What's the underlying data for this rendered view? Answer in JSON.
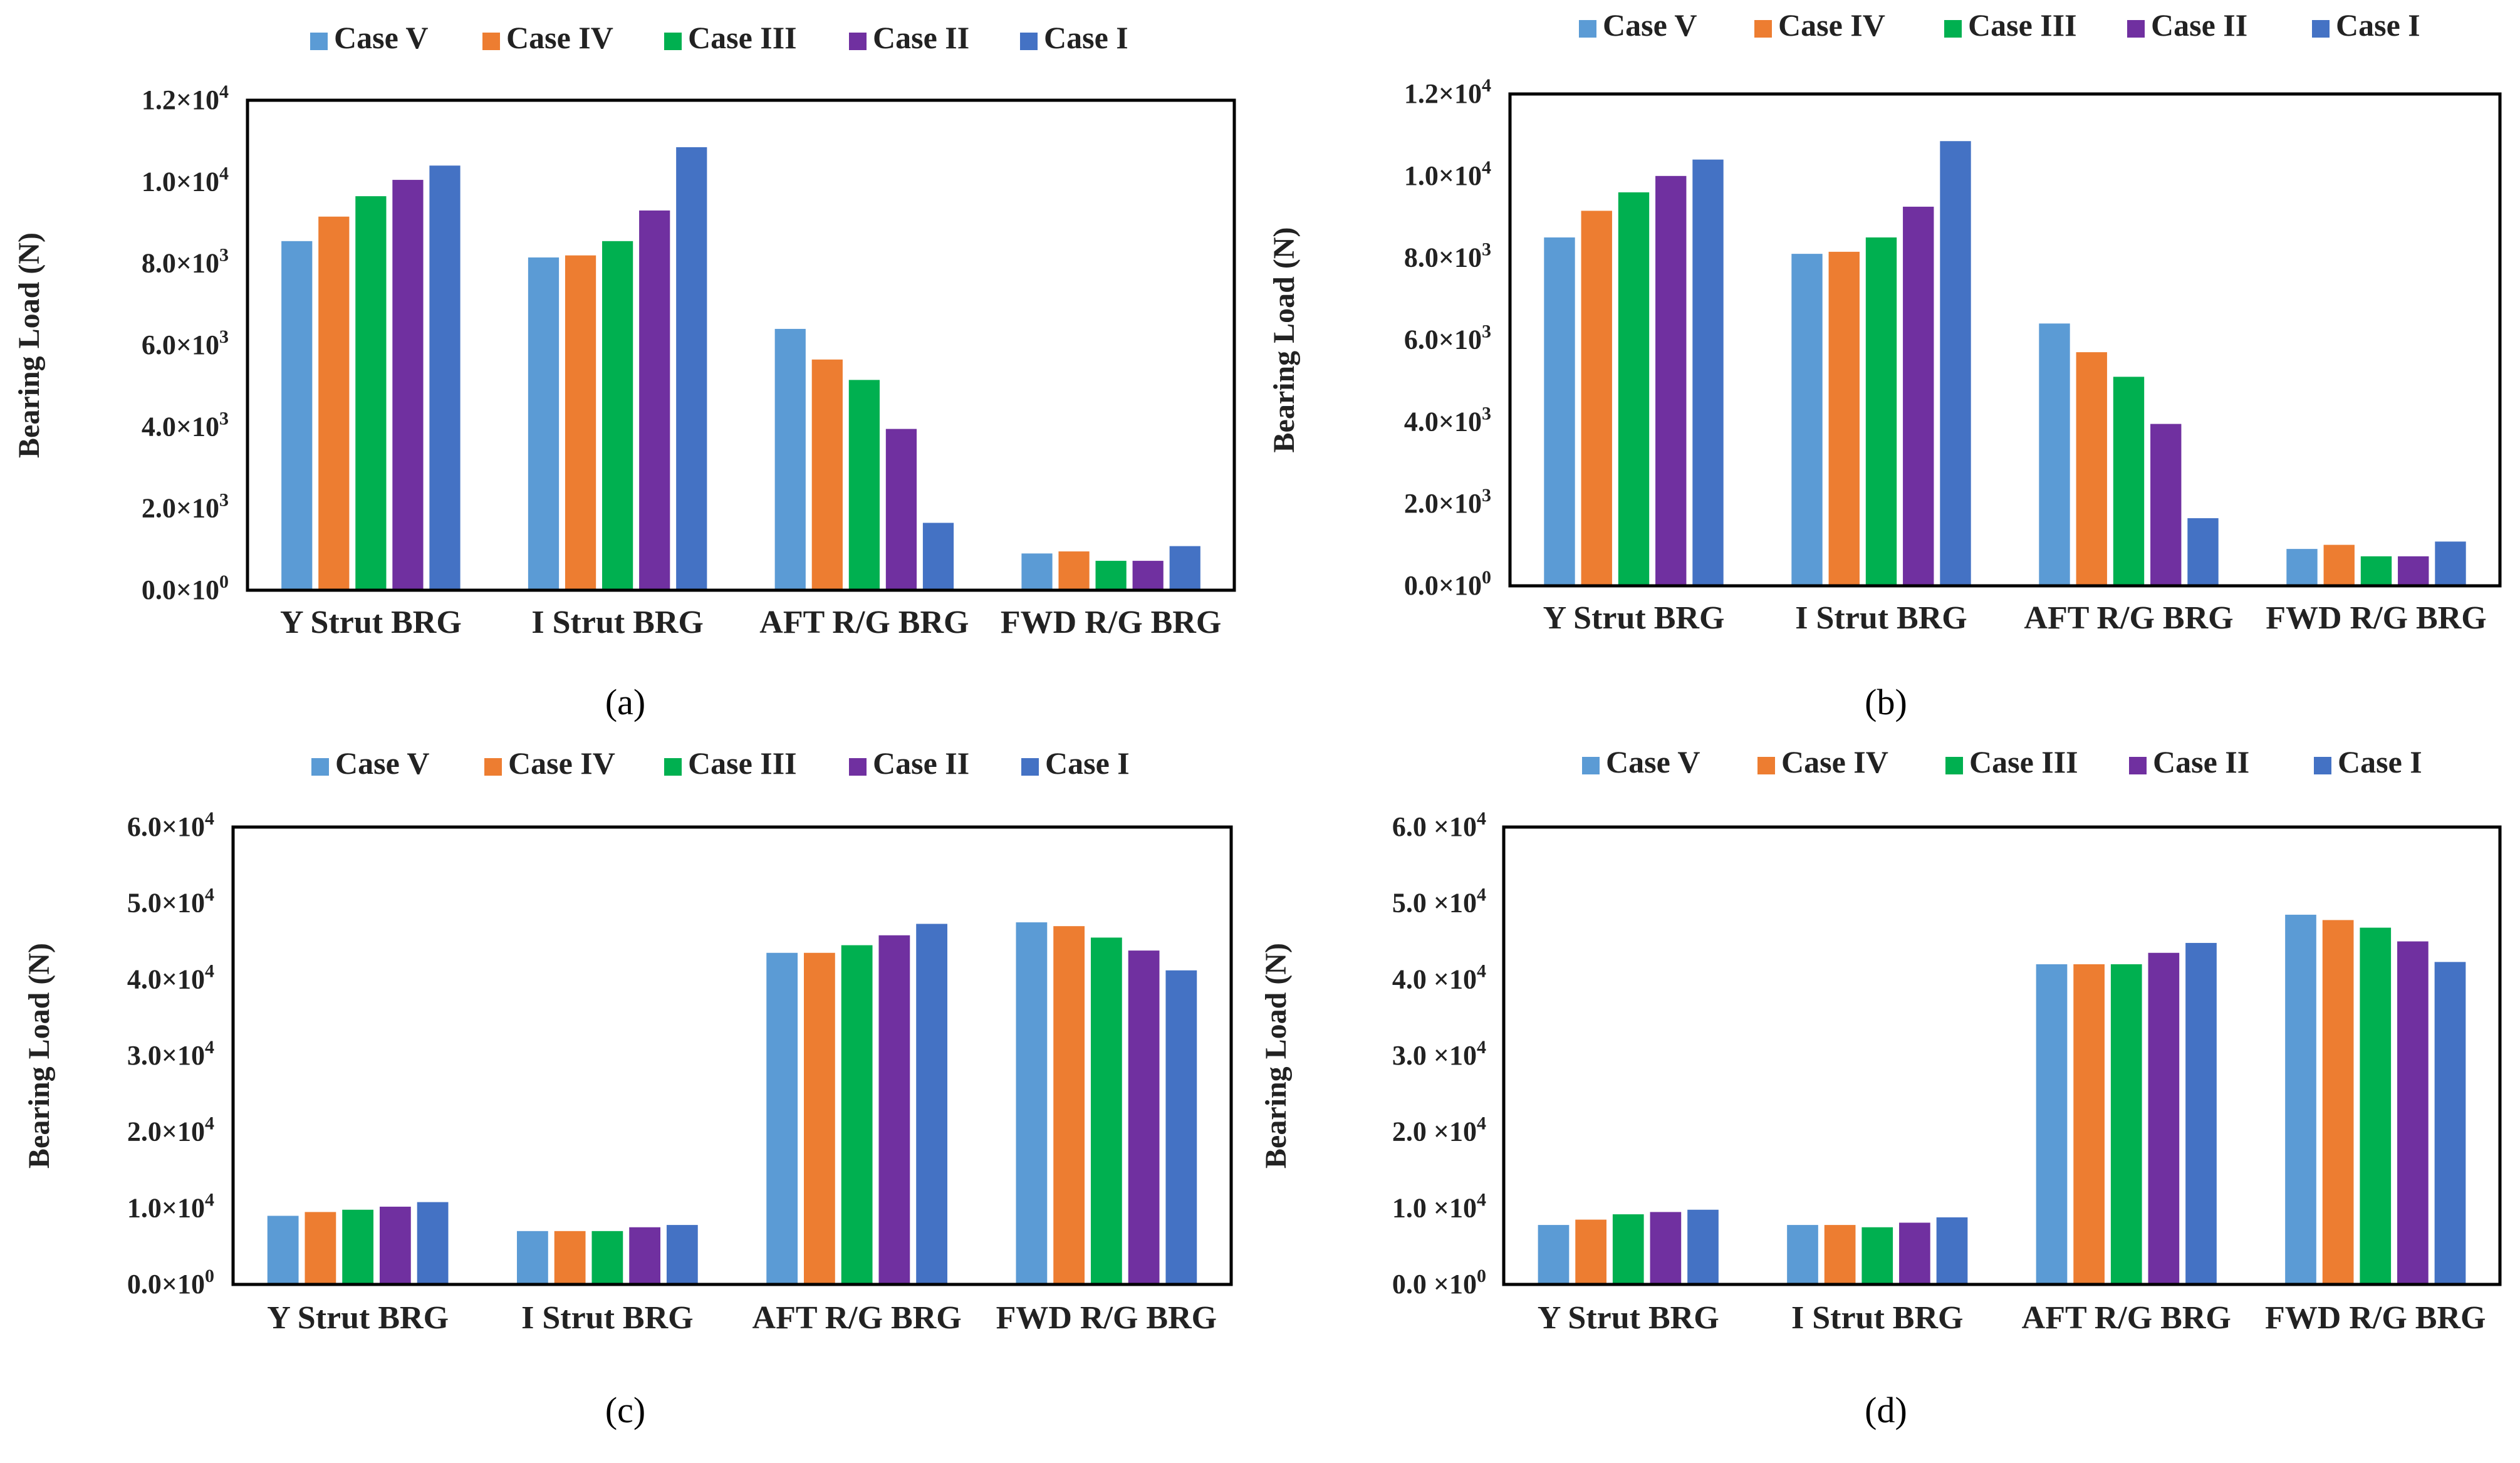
{
  "figure": {
    "colors": {
      "Case V": "#5B9BD5",
      "Case IV": "#ED7D31",
      "Case III": "#00B050",
      "Case II": "#7030A0",
      "Case I": "#4472C4"
    }
  },
  "chart_data": [
    {
      "type": "bar",
      "panel_label": "(a)",
      "ylabel": "Bearing Load (N)",
      "xlabel": "",
      "ylim": [
        0,
        12000
      ],
      "yticks": [
        0,
        2000,
        4000,
        6000,
        8000,
        10000,
        12000
      ],
      "ytick_labels": [
        {
          "mant": "0.0×10",
          "exp": "0"
        },
        {
          "mant": "2.0×10",
          "exp": "3"
        },
        {
          "mant": "4.0×10",
          "exp": "3"
        },
        {
          "mant": "6.0×10",
          "exp": "3"
        },
        {
          "mant": "8.0×10",
          "exp": "3"
        },
        {
          "mant": "1.0×10",
          "exp": "4"
        },
        {
          "mant": "1.2×10",
          "exp": "4"
        }
      ],
      "legend_position": "top",
      "categories": [
        "Y Strut BRG",
        "I Strut BRG",
        "AFT  R/G BRG",
        "FWD  R/G BRG"
      ],
      "series": [
        {
          "name": "Case V",
          "values": [
            8550,
            8150,
            6400,
            900
          ]
        },
        {
          "name": "Case IV",
          "values": [
            9150,
            8200,
            5650,
            950
          ]
        },
        {
          "name": "Case III",
          "values": [
            9650,
            8550,
            5150,
            720
          ]
        },
        {
          "name": "Case II",
          "values": [
            10050,
            9300,
            3950,
            720
          ]
        },
        {
          "name": "Case I",
          "values": [
            10400,
            10850,
            1650,
            1080
          ]
        }
      ]
    },
    {
      "type": "bar",
      "panel_label": "(b)",
      "ylabel": "Bearing Load (N)",
      "xlabel": "",
      "ylim": [
        0,
        12000
      ],
      "yticks": [
        0,
        2000,
        4000,
        6000,
        8000,
        10000,
        12000
      ],
      "ytick_labels": [
        {
          "mant": "0.0×10",
          "exp": "0"
        },
        {
          "mant": "2.0×10",
          "exp": "3"
        },
        {
          "mant": "4.0×10",
          "exp": "3"
        },
        {
          "mant": "6.0×10",
          "exp": "3"
        },
        {
          "mant": "8.0×10",
          "exp": "3"
        },
        {
          "mant": "1.0×10",
          "exp": "4"
        },
        {
          "mant": "1.2×10",
          "exp": "4"
        }
      ],
      "legend_position": "top",
      "categories": [
        "Y Strut BRG",
        "I Strut BRG",
        "AFT  R/G BRG",
        "FWD  R/G BRG"
      ],
      "series": [
        {
          "name": "Case V",
          "values": [
            8500,
            8100,
            6400,
            900
          ]
        },
        {
          "name": "Case IV",
          "values": [
            9150,
            8150,
            5700,
            1000
          ]
        },
        {
          "name": "Case III",
          "values": [
            9600,
            8500,
            5100,
            720
          ]
        },
        {
          "name": "Case II",
          "values": [
            10000,
            9250,
            3950,
            720
          ]
        },
        {
          "name": "Case I",
          "values": [
            10400,
            10850,
            1650,
            1080
          ]
        }
      ]
    },
    {
      "type": "bar",
      "panel_label": "(c)",
      "ylabel": "Bearing Load (N)",
      "xlabel": "",
      "ylim": [
        0,
        60000
      ],
      "yticks": [
        0,
        10000,
        20000,
        30000,
        40000,
        50000,
        60000
      ],
      "ytick_labels": [
        {
          "mant": "0.0×10",
          "exp": "0"
        },
        {
          "mant": "1.0×10",
          "exp": "4"
        },
        {
          "mant": "2.0×10",
          "exp": "4"
        },
        {
          "mant": "3.0×10",
          "exp": "4"
        },
        {
          "mant": "4.0×10",
          "exp": "4"
        },
        {
          "mant": "5.0×10",
          "exp": "4"
        },
        {
          "mant": "6.0×10",
          "exp": "4"
        }
      ],
      "legend_position": "top",
      "categories": [
        "Y Strut BRG",
        "I Strut BRG",
        "AFT  R/G BRG",
        "FWD  R/G BRG"
      ],
      "series": [
        {
          "name": "Case V",
          "values": [
            9000,
            7000,
            43500,
            47500
          ]
        },
        {
          "name": "Case IV",
          "values": [
            9500,
            7000,
            43500,
            47000
          ]
        },
        {
          "name": "Case III",
          "values": [
            9800,
            7000,
            44500,
            45500
          ]
        },
        {
          "name": "Case II",
          "values": [
            10200,
            7500,
            45800,
            43800
          ]
        },
        {
          "name": "Case I",
          "values": [
            10800,
            7800,
            47300,
            41200
          ]
        }
      ]
    },
    {
      "type": "bar",
      "panel_label": "(d)",
      "ylabel": "Bearing Load (N)",
      "xlabel": "",
      "ylim": [
        0,
        60000
      ],
      "yticks": [
        0,
        10000,
        20000,
        30000,
        40000,
        50000,
        60000
      ],
      "ytick_labels": [
        {
          "mant": "0.0 ×10",
          "exp": "0"
        },
        {
          "mant": "1.0 ×10",
          "exp": "4"
        },
        {
          "mant": "2.0 ×10",
          "exp": "4"
        },
        {
          "mant": "3.0 ×10",
          "exp": "4"
        },
        {
          "mant": "4.0 ×10",
          "exp": "4"
        },
        {
          "mant": "5.0 ×10",
          "exp": "4"
        },
        {
          "mant": "6.0 ×10",
          "exp": "4"
        }
      ],
      "legend_position": "top",
      "categories": [
        "Y Strut BRG",
        "I Strut BRG",
        "AFT  R/G BRG",
        "FWD  R/G BRG"
      ],
      "series": [
        {
          "name": "Case V",
          "values": [
            7800,
            7800,
            42000,
            48500
          ]
        },
        {
          "name": "Case IV",
          "values": [
            8500,
            7800,
            42000,
            47800
          ]
        },
        {
          "name": "Case III",
          "values": [
            9200,
            7500,
            42000,
            46800
          ]
        },
        {
          "name": "Case II",
          "values": [
            9500,
            8100,
            43500,
            45000
          ]
        },
        {
          "name": "Case I",
          "values": [
            9800,
            8800,
            44800,
            42300
          ]
        }
      ]
    }
  ]
}
